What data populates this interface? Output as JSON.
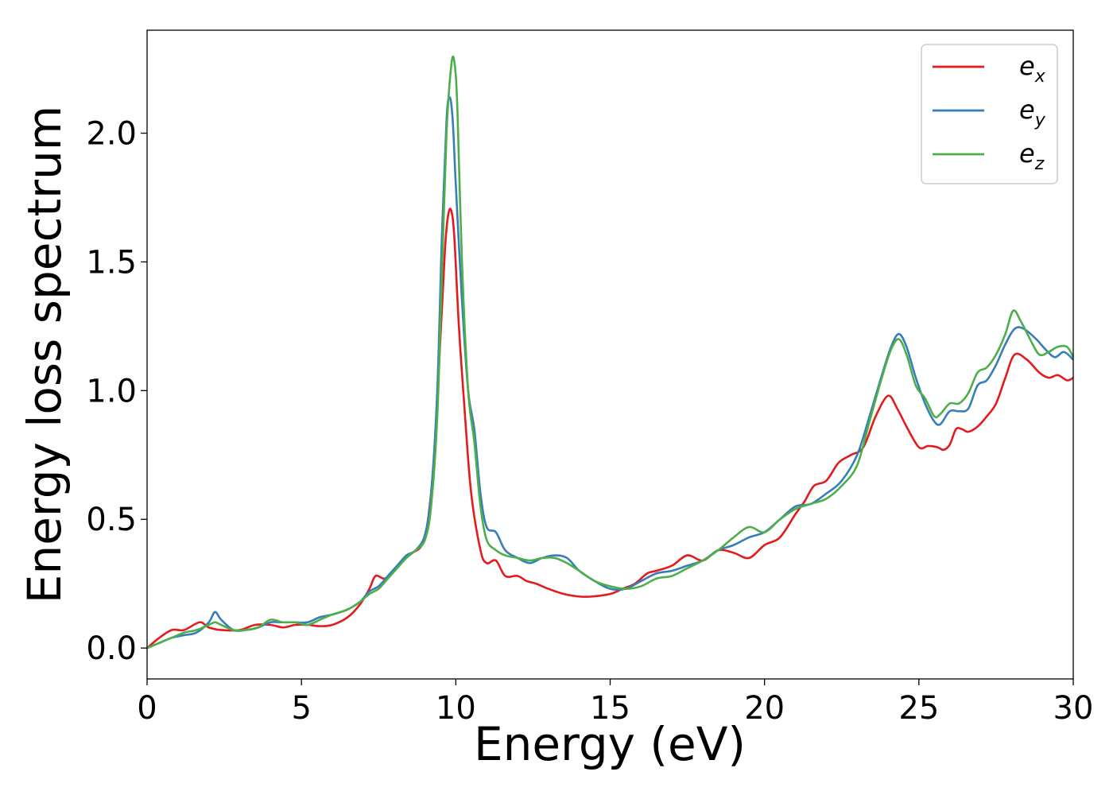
{
  "chart_data": {
    "type": "line",
    "title": "",
    "xlabel": "Energy (eV)",
    "ylabel": "Energy loss spectrum",
    "xlim": [
      0,
      30
    ],
    "ylim": [
      -0.12,
      2.4
    ],
    "xticks": [
      0,
      5,
      10,
      15,
      20,
      25,
      30
    ],
    "xtick_labels": [
      "0",
      "5",
      "10",
      "15",
      "20",
      "25",
      "30"
    ],
    "yticks": [
      0,
      0.5,
      1.0,
      1.5,
      2.0
    ],
    "ytick_labels": [
      "0.0",
      "0.5",
      "1.0",
      "1.5",
      "2.0"
    ],
    "grid": false,
    "legend_position": "top-right",
    "series": [
      {
        "name": "e",
        "subscript": "x",
        "color": "#e41a1c",
        "x": [
          0,
          0.4,
          0.8,
          1.2,
          1.7,
          2.0,
          2.4,
          3.0,
          3.5,
          4.0,
          4.4,
          4.8,
          5.2,
          5.6,
          6.0,
          6.5,
          6.9,
          7.2,
          7.4,
          7.7,
          8.0,
          8.3,
          8.6,
          8.9,
          9.1,
          9.3,
          9.5,
          9.65,
          9.75,
          9.85,
          9.95,
          10.1,
          10.3,
          10.5,
          10.8,
          11.0,
          11.3,
          11.6,
          12.0,
          12.3,
          12.6,
          13.0,
          13.5,
          14.0,
          14.4,
          15.0,
          15.4,
          15.8,
          16.2,
          16.5,
          17.0,
          17.5,
          18.0,
          18.5,
          19.0,
          19.5,
          20.0,
          20.5,
          21.0,
          21.3,
          21.6,
          22.0,
          22.4,
          22.8,
          23.2,
          23.6,
          24.0,
          24.3,
          24.6,
          25.0,
          25.3,
          25.6,
          25.8,
          26.0,
          26.2,
          26.4,
          26.6,
          26.9,
          27.2,
          27.5,
          27.8,
          28.1,
          28.5,
          28.9,
          29.2,
          29.5,
          29.8,
          30.0
        ],
        "y": [
          0.0,
          0.04,
          0.07,
          0.07,
          0.1,
          0.08,
          0.07,
          0.07,
          0.09,
          0.09,
          0.08,
          0.09,
          0.09,
          0.085,
          0.09,
          0.12,
          0.17,
          0.23,
          0.28,
          0.27,
          0.3,
          0.34,
          0.37,
          0.4,
          0.5,
          0.75,
          1.2,
          1.55,
          1.68,
          1.7,
          1.6,
          1.25,
          0.9,
          0.6,
          0.38,
          0.33,
          0.34,
          0.28,
          0.28,
          0.26,
          0.25,
          0.23,
          0.21,
          0.2,
          0.2,
          0.21,
          0.23,
          0.25,
          0.29,
          0.3,
          0.32,
          0.36,
          0.34,
          0.38,
          0.37,
          0.35,
          0.4,
          0.43,
          0.52,
          0.57,
          0.63,
          0.65,
          0.72,
          0.75,
          0.78,
          0.9,
          0.98,
          0.93,
          0.86,
          0.78,
          0.785,
          0.78,
          0.77,
          0.79,
          0.85,
          0.85,
          0.84,
          0.86,
          0.9,
          0.95,
          1.05,
          1.14,
          1.12,
          1.07,
          1.05,
          1.06,
          1.04,
          1.05
        ]
      },
      {
        "name": "e",
        "subscript": "y",
        "color": "#377eb8",
        "x": [
          0,
          0.4,
          0.8,
          1.2,
          1.6,
          2.0,
          2.2,
          2.4,
          2.8,
          3.2,
          3.6,
          4.0,
          4.4,
          4.8,
          5.2,
          5.6,
          6.0,
          6.5,
          6.9,
          7.2,
          7.5,
          7.8,
          8.1,
          8.4,
          8.7,
          9.0,
          9.2,
          9.4,
          9.55,
          9.7,
          9.8,
          9.9,
          10.0,
          10.2,
          10.4,
          10.6,
          10.8,
          11.0,
          11.3,
          11.6,
          12.0,
          12.4,
          12.8,
          13.2,
          13.6,
          14.0,
          14.5,
          15.0,
          15.5,
          16.0,
          16.5,
          17.0,
          17.5,
          18.0,
          18.5,
          19.0,
          19.5,
          20.0,
          20.5,
          21.0,
          21.5,
          22.0,
          22.5,
          23.0,
          23.4,
          23.8,
          24.1,
          24.35,
          24.6,
          24.9,
          25.2,
          25.5,
          25.7,
          26.0,
          26.3,
          26.6,
          26.9,
          27.2,
          27.5,
          27.8,
          28.1,
          28.4,
          28.8,
          29.1,
          29.4,
          29.7,
          30.0
        ],
        "y": [
          0.0,
          0.02,
          0.04,
          0.05,
          0.06,
          0.1,
          0.14,
          0.11,
          0.07,
          0.07,
          0.08,
          0.1,
          0.1,
          0.1,
          0.1,
          0.12,
          0.13,
          0.15,
          0.18,
          0.22,
          0.24,
          0.28,
          0.32,
          0.36,
          0.38,
          0.44,
          0.6,
          1.0,
          1.6,
          2.05,
          2.14,
          2.05,
          1.8,
          1.35,
          1.0,
          0.85,
          0.6,
          0.47,
          0.45,
          0.38,
          0.35,
          0.33,
          0.35,
          0.36,
          0.35,
          0.3,
          0.26,
          0.23,
          0.23,
          0.26,
          0.29,
          0.3,
          0.32,
          0.34,
          0.38,
          0.4,
          0.43,
          0.45,
          0.5,
          0.55,
          0.56,
          0.6,
          0.65,
          0.75,
          0.9,
          1.06,
          1.17,
          1.22,
          1.17,
          1.05,
          0.95,
          0.88,
          0.87,
          0.92,
          0.92,
          0.93,
          1.02,
          1.04,
          1.1,
          1.18,
          1.24,
          1.24,
          1.2,
          1.16,
          1.13,
          1.15,
          1.12
        ]
      },
      {
        "name": "e",
        "subscript": "z",
        "color": "#4daf4a",
        "x": [
          0,
          0.4,
          0.8,
          1.2,
          1.6,
          2.0,
          2.2,
          2.4,
          2.8,
          3.2,
          3.6,
          4.0,
          4.4,
          4.8,
          5.2,
          5.6,
          6.0,
          6.5,
          6.9,
          7.2,
          7.5,
          7.8,
          8.1,
          8.4,
          8.7,
          9.0,
          9.2,
          9.4,
          9.55,
          9.7,
          9.85,
          9.95,
          10.05,
          10.2,
          10.4,
          10.6,
          10.8,
          11.0,
          11.3,
          11.6,
          12.0,
          12.4,
          12.8,
          13.2,
          13.6,
          14.0,
          14.5,
          15.0,
          15.5,
          16.0,
          16.5,
          17.0,
          17.5,
          18.0,
          18.5,
          19.0,
          19.5,
          20.0,
          20.5,
          21.0,
          21.5,
          22.0,
          22.5,
          23.0,
          23.4,
          23.8,
          24.1,
          24.35,
          24.6,
          24.9,
          25.2,
          25.5,
          25.7,
          26.0,
          26.3,
          26.6,
          26.9,
          27.2,
          27.5,
          27.8,
          28.05,
          28.3,
          28.6,
          28.9,
          29.2,
          29.5,
          29.8,
          30.0
        ],
        "y": [
          0.0,
          0.02,
          0.04,
          0.06,
          0.07,
          0.09,
          0.1,
          0.09,
          0.07,
          0.07,
          0.08,
          0.11,
          0.1,
          0.1,
          0.09,
          0.11,
          0.13,
          0.15,
          0.18,
          0.21,
          0.23,
          0.27,
          0.31,
          0.35,
          0.38,
          0.42,
          0.55,
          0.9,
          1.45,
          2.0,
          2.26,
          2.28,
          2.1,
          1.5,
          1.0,
          0.8,
          0.55,
          0.42,
          0.38,
          0.36,
          0.35,
          0.34,
          0.35,
          0.35,
          0.33,
          0.3,
          0.26,
          0.24,
          0.23,
          0.24,
          0.27,
          0.28,
          0.31,
          0.34,
          0.38,
          0.43,
          0.47,
          0.45,
          0.5,
          0.54,
          0.56,
          0.58,
          0.63,
          0.71,
          0.88,
          1.05,
          1.16,
          1.2,
          1.14,
          1.02,
          0.97,
          0.9,
          0.91,
          0.95,
          0.95,
          0.99,
          1.07,
          1.09,
          1.14,
          1.22,
          1.31,
          1.27,
          1.2,
          1.14,
          1.15,
          1.17,
          1.17,
          1.13
        ]
      }
    ]
  }
}
